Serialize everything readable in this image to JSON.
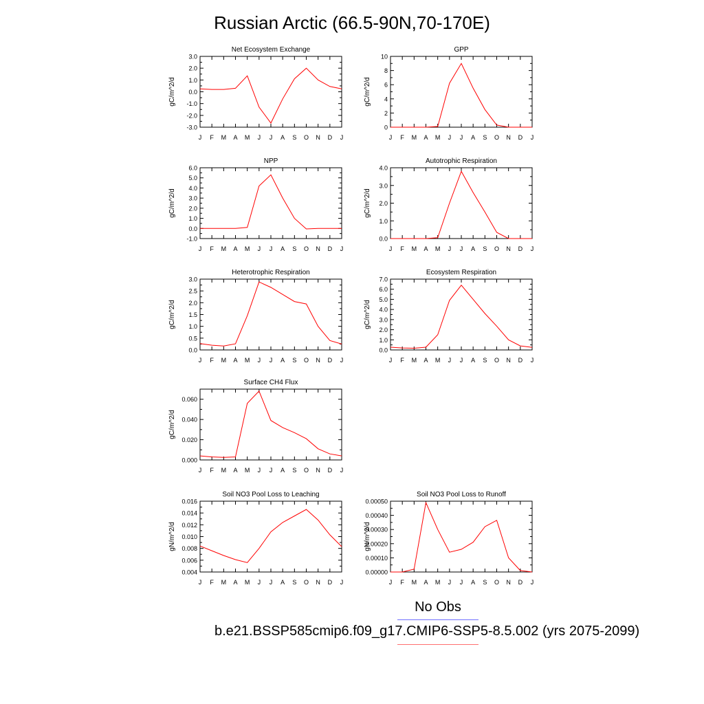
{
  "title": "Russian Arctic (66.5-90N,70-170E)",
  "legend": {
    "obs_label": "No Obs",
    "obs_color": "#6f6fff",
    "case_label": "b.e21.BSSP585cmip6.f09_g17.CMIP6-SSP5-8.5.002 (yrs 2075-2099)",
    "case_color": "#ff0000"
  },
  "months": [
    "J",
    "F",
    "M",
    "A",
    "M",
    "J",
    "J",
    "A",
    "S",
    "O",
    "N",
    "D",
    "J"
  ],
  "chart_data": [
    {
      "type": "line",
      "title": "Net Ecosystem Exchange",
      "ylabel": "gC/m^2/d",
      "ylim": [
        -3.0,
        3.0
      ],
      "yticks": [
        "-3.0",
        "-2.0",
        "-1.0",
        "0.0",
        "1.0",
        "2.0",
        "3.0"
      ],
      "ytick_values": [
        -3,
        -2,
        -1,
        0,
        1,
        2,
        3
      ],
      "series": [
        {
          "values": [
            0.25,
            0.2,
            0.2,
            0.3,
            1.35,
            -1.3,
            -2.65,
            -0.6,
            1.1,
            2.0,
            1.0,
            0.45,
            0.25
          ]
        }
      ]
    },
    {
      "type": "line",
      "title": "GPP",
      "ylabel": "gC/m^2/d",
      "ylim": [
        0,
        10
      ],
      "yticks": [
        "0",
        "2",
        "4",
        "6",
        "8",
        "10"
      ],
      "ytick_values": [
        0,
        2,
        4,
        6,
        8,
        10
      ],
      "series": [
        {
          "values": [
            0.0,
            0.0,
            0.0,
            0.0,
            0.1,
            6.2,
            9.0,
            5.5,
            2.5,
            0.3,
            0.0,
            0.0,
            0.0
          ]
        }
      ]
    },
    {
      "type": "line",
      "title": "NPP",
      "ylabel": "gC/m^2/d",
      "ylim": [
        -1.0,
        6.0
      ],
      "yticks": [
        "-1.0",
        "0.0",
        "1.0",
        "2.0",
        "3.0",
        "4.0",
        "5.0",
        "6.0"
      ],
      "ytick_values": [
        -1,
        0,
        1,
        2,
        3,
        4,
        5,
        6
      ],
      "series": [
        {
          "values": [
            0.0,
            0.0,
            0.0,
            0.0,
            0.1,
            4.2,
            5.3,
            3.0,
            1.0,
            -0.05,
            0.0,
            0.0,
            0.0
          ]
        }
      ]
    },
    {
      "type": "line",
      "title": "Autotrophic Respiration",
      "ylabel": "gC/m^2/d",
      "ylim": [
        0,
        4.0
      ],
      "yticks": [
        "0.0",
        "1.0",
        "2.0",
        "3.0",
        "4.0"
      ],
      "ytick_values": [
        0,
        1,
        2,
        3,
        4
      ],
      "series": [
        {
          "values": [
            0.0,
            0.0,
            0.0,
            0.0,
            0.05,
            2.0,
            3.8,
            2.6,
            1.5,
            0.35,
            0.0,
            0.0,
            0.0
          ]
        }
      ]
    },
    {
      "type": "line",
      "title": "Heterotrophic Respiration",
      "ylabel": "gC/m^2/d",
      "ylim": [
        0,
        3.0
      ],
      "yticks": [
        "0.0",
        "0.5",
        "1.0",
        "1.5",
        "2.0",
        "2.5",
        "3.0"
      ],
      "ytick_values": [
        0,
        0.5,
        1,
        1.5,
        2,
        2.5,
        3
      ],
      "series": [
        {
          "values": [
            0.27,
            0.2,
            0.17,
            0.26,
            1.45,
            2.88,
            2.65,
            2.35,
            2.05,
            1.95,
            1.0,
            0.4,
            0.25
          ]
        }
      ]
    },
    {
      "type": "line",
      "title": "Ecosystem Respiration",
      "ylabel": "gC/m^2/d",
      "ylim": [
        0,
        7.0
      ],
      "yticks": [
        "0.0",
        "1.0",
        "2.0",
        "3.0",
        "4.0",
        "5.0",
        "6.0",
        "7.0"
      ],
      "ytick_values": [
        0,
        1,
        2,
        3,
        4,
        5,
        6,
        7
      ],
      "series": [
        {
          "values": [
            0.27,
            0.2,
            0.17,
            0.27,
            1.5,
            4.9,
            6.4,
            5.0,
            3.6,
            2.35,
            1.0,
            0.4,
            0.25
          ]
        }
      ]
    },
    {
      "type": "line",
      "title": "Surface CH4 Flux",
      "ylabel": "gC/m^2/d",
      "ylim": [
        0,
        0.07
      ],
      "yticks": [
        "0.000",
        "0.020",
        "0.040",
        "0.060"
      ],
      "ytick_values": [
        0,
        0.02,
        0.04,
        0.06
      ],
      "series": [
        {
          "values": [
            0.004,
            0.003,
            0.0025,
            0.003,
            0.056,
            0.068,
            0.039,
            0.032,
            0.027,
            0.021,
            0.011,
            0.006,
            0.004
          ]
        }
      ]
    },
    null,
    {
      "type": "line",
      "title": "Soil NO3 Pool Loss to Leaching",
      "ylabel": "gN/m^2/d",
      "ylim": [
        0.004,
        0.016
      ],
      "yticks": [
        "0.004",
        "0.006",
        "0.008",
        "0.010",
        "0.012",
        "0.014",
        "0.016"
      ],
      "ytick_values": [
        0.004,
        0.006,
        0.008,
        0.01,
        0.012,
        0.014,
        0.016
      ],
      "series": [
        {
          "values": [
            0.0084,
            0.0076,
            0.0068,
            0.0061,
            0.0056,
            0.008,
            0.0108,
            0.0124,
            0.0135,
            0.0146,
            0.0128,
            0.0103,
            0.0083
          ]
        }
      ]
    },
    {
      "type": "line",
      "title": "Soil NO3 Pool Loss to Runoff",
      "ylabel": "gN/m^2/d",
      "ylim": [
        0,
        0.0005
      ],
      "yticks": [
        "0.00000",
        "0.00010",
        "0.00020",
        "0.00030",
        "0.00040",
        "0.00050"
      ],
      "ytick_values": [
        0,
        0.0001,
        0.0002,
        0.0003,
        0.0004,
        0.0005
      ],
      "series": [
        {
          "values": [
            0.0,
            0.0,
            2e-05,
            0.00049,
            0.0003,
            0.00014,
            0.00016,
            0.00021,
            0.00032,
            0.000365,
            0.0001,
            1e-05,
            0.0
          ]
        }
      ]
    }
  ]
}
